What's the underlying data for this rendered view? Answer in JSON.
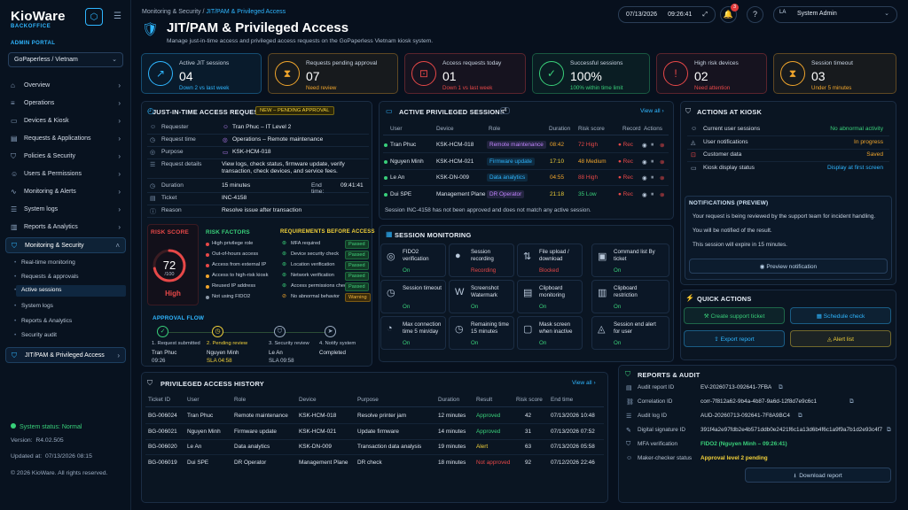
{
  "sidebar": {
    "brand": "KioWare",
    "brand_sub": "BACKOFFICE",
    "portal_label": "ADMIN PORTAL",
    "tenant": "GoPaperless / Vietnam",
    "nav": [
      {
        "label": "Overview",
        "icon": "home-icon"
      },
      {
        "label": "Operations",
        "icon": "sliders-icon"
      },
      {
        "label": "Devices & Kiosk",
        "icon": "monitor-icon"
      },
      {
        "label": "Requests & Applications",
        "icon": "document-icon"
      },
      {
        "label": "Policies & Security",
        "icon": "shield-icon"
      },
      {
        "label": "Users & Permissions",
        "icon": "users-icon"
      },
      {
        "label": "Monitoring & Alerts",
        "icon": "pulse-icon"
      },
      {
        "label": "System logs",
        "icon": "list-icon"
      },
      {
        "label": "Reports & Analytics",
        "icon": "chart-icon"
      },
      {
        "label": "Monitoring & Security",
        "icon": "shield-check-icon"
      }
    ],
    "subnav": [
      "Real-time monitoring",
      "Requests & approvals",
      "Active sessions",
      "System logs",
      "Reports & Analytics",
      "Security audit"
    ],
    "jit_item": "JIT/PAM & Privileged Access",
    "status": "System status: Normal",
    "version_label": "Version:",
    "version": "R4.02.505",
    "updated_label": "Updated at:",
    "updated": "07/13/2026 08:15",
    "copyright": "© 2026 KioWare. All rights reserved."
  },
  "header": {
    "breadcrumb_root": "Monitoring & Security",
    "breadcrumb_sep": "/",
    "breadcrumb_current": "JIT/PAM & Privileged Access",
    "title": "JIT/PAM & Privileged Access",
    "subtitle": "Manage just-in-time access and privileged access requests on the GoPaperless Vietnam kiosk system.",
    "date": "07/13/2026",
    "time": "09:26:41",
    "notif_count": "3",
    "user_initials": "LA",
    "user_name": "System Admin"
  },
  "kpis": [
    {
      "label": "Active JIT sessions",
      "value": "04",
      "sub": "Down 2 vs last week",
      "color": "#2fb6ff",
      "icon": "trend-icon"
    },
    {
      "label": "Requests pending approval",
      "value": "07",
      "sub": "Need review",
      "color": "#f0a52c",
      "icon": "hourglass-icon"
    },
    {
      "label": "Access requests today",
      "value": "01",
      "sub": "Down 1 vs last week",
      "color": "#e74848",
      "icon": "lock-icon"
    },
    {
      "label": "Successful sessions",
      "value": "100%",
      "sub": "100% within time limit",
      "color": "#39d07a",
      "icon": "check-icon"
    },
    {
      "label": "High risk devices",
      "value": "02",
      "sub": "Need attention",
      "color": "#e74848",
      "icon": "shield-alert-icon"
    },
    {
      "label": "Session timeout",
      "value": "03",
      "sub": "Under 5 minutes",
      "color": "#f0a52c",
      "icon": "hourglass-icon"
    }
  ],
  "jit": {
    "title": "JUST-IN-TIME ACCESS REQUEST",
    "badge": "NEW – PENDING APPROVAL",
    "rows": [
      {
        "k": "Requester",
        "v": "Tran Phuc – IT Level 2"
      },
      {
        "k": "Request time",
        "v": "Operations – Remote maintenance"
      },
      {
        "k": "Purpose",
        "v": "KSK-HCM-018"
      },
      {
        "k": "Request details",
        "v": "View logs, check status, firmware update, verify transaction, check devices, and service fees."
      },
      {
        "k": "Duration",
        "v": "15 minutes"
      },
      {
        "k": "Ticket",
        "v": "INC-4158"
      },
      {
        "k": "Reason",
        "v": "Resolve issue after transaction"
      }
    ],
    "end_label": "End time:",
    "end_value": "09:41:41",
    "risk_title": "RISK SCORE",
    "risk_value": "72",
    "risk_max": "/100",
    "risk_level": "High",
    "risk_pct": 0.72,
    "factors_title": "RISK FACTORS",
    "factors": [
      {
        "t": "High privilege role",
        "c": "#e74848"
      },
      {
        "t": "Out-of-hours access",
        "c": "#e74848"
      },
      {
        "t": "Access from external IP",
        "c": "#e74848"
      },
      {
        "t": "Access to high-risk kiosk",
        "c": "#f0a52c"
      },
      {
        "t": "Reused IP address",
        "c": "#f0a52c"
      },
      {
        "t": "Not using FIDO2",
        "c": "#8a96a6"
      }
    ],
    "req_title": "REQUIREMENTS BEFORE ACCESS",
    "reqs": [
      {
        "t": "MFA required",
        "s": "Passed",
        "ok": true
      },
      {
        "t": "Device security check",
        "s": "Passed",
        "ok": true
      },
      {
        "t": "Location verification",
        "s": "Passed",
        "ok": true
      },
      {
        "t": "Network verification",
        "s": "Passed",
        "ok": true
      },
      {
        "t": "Access permissions check",
        "s": "Passed",
        "ok": true
      },
      {
        "t": "No abnormal behavior",
        "s": "Warning",
        "ok": false
      }
    ],
    "flow_title": "APPROVAL FLOW",
    "flow": [
      {
        "step": "1. Request submitted",
        "who": "Tran Phuc",
        "when": "09:26"
      },
      {
        "step": "2. Pending review",
        "who": "Nguyen Minh",
        "when": "SLA 04:58"
      },
      {
        "step": "3. Security review",
        "who": "Le An",
        "when": "SLA 09:58"
      },
      {
        "step": "4. Notify system",
        "who": "Completed",
        "when": ""
      }
    ]
  },
  "sessions": {
    "title": "ACTIVE PRIVILEGED SESSIONS",
    "count": "4",
    "view_all": "View all",
    "cols": [
      "User",
      "Device",
      "Role",
      "Duration",
      "Risk score",
      "Record",
      "Actions"
    ],
    "rows": [
      {
        "user": "Tran Phuc",
        "device": "KSK-HCM-018",
        "role": "Remote maintenance",
        "roleColor": "#c184ff",
        "dur": "08:42",
        "durColor": "#f0a52c",
        "risk": "72 High",
        "riskColor": "#e74848",
        "rec": "Rec"
      },
      {
        "user": "Nguyen Minh",
        "device": "KSK-HCM-021",
        "role": "Firmware update",
        "roleColor": "#2fb6ff",
        "dur": "17:10",
        "durColor": "#f2d13a",
        "risk": "48 Medium",
        "riskColor": "#f0a52c",
        "rec": "Rec"
      },
      {
        "user": "Le An",
        "device": "KSK-DN-009",
        "role": "Data analytics",
        "roleColor": "#2fb6ff",
        "dur": "04:55",
        "durColor": "#f0a52c",
        "risk": "88 High",
        "riskColor": "#e74848",
        "rec": "Rec"
      },
      {
        "user": "Dui SPE",
        "device": "Management Plane",
        "role": "DR Operator",
        "roleColor": "#c184ff",
        "dur": "21:18",
        "durColor": "#f2d13a",
        "risk": "35 Low",
        "riskColor": "#39d07a",
        "rec": "Rec"
      }
    ],
    "note": "Session INC-4158 has not been approved and does not match any active session."
  },
  "monitoring": {
    "title": "SESSION MONITORING",
    "tiles": [
      {
        "l": "FIDO2 verification",
        "s": "On",
        "sc": "#39d07a",
        "i": "fingerprint-icon"
      },
      {
        "l": "Session recording",
        "s": "Recording",
        "sc": "#e74848",
        "i": "record-icon"
      },
      {
        "l": "File upload / download",
        "s": "Blocked",
        "sc": "#e74848",
        "i": "upload-icon"
      },
      {
        "l": "Command list By ticket",
        "s": "On",
        "sc": "#39d07a",
        "i": "terminal-icon"
      },
      {
        "l": "Session timeout",
        "s": "On",
        "sc": "#39d07a",
        "i": "timer-icon"
      },
      {
        "l": "Screenshot Watermark",
        "s": "On",
        "sc": "#39d07a",
        "i": "watermark-icon"
      },
      {
        "l": "Clipboard monitoring",
        "s": "On",
        "sc": "#39d07a",
        "i": "clipboard-icon"
      },
      {
        "l": "Clipboard restriction",
        "s": "On",
        "sc": "#39d07a",
        "i": "clipboard-lock-icon"
      },
      {
        "l": "Max connection time 5 min/day",
        "s": "On",
        "sc": "#39d07a",
        "i": "speed-icon"
      },
      {
        "l": "Remaining time 15 minutes",
        "s": "On",
        "sc": "#39d07a",
        "i": "clock-icon"
      },
      {
        "l": "Mask screen when inactive",
        "s": "On",
        "sc": "#39d07a",
        "i": "mask-icon"
      },
      {
        "l": "Session end alert for user",
        "s": "On",
        "sc": "#39d07a",
        "i": "bell-icon"
      }
    ]
  },
  "kiosk": {
    "title": "ACTIONS AT KIOSK",
    "rows": [
      {
        "k": "Current user sessions",
        "v": "No abnormal activity",
        "c": "#39d07a"
      },
      {
        "k": "User notifications",
        "v": "In progress",
        "c": "#f0a52c"
      },
      {
        "k": "Customer data",
        "v": "Saved",
        "c": "#f0a52c"
      },
      {
        "k": "Kiosk display status",
        "v": "Display at first screen",
        "c": "#2fb6ff"
      }
    ],
    "notif_title": "NOTIFICATIONS (PREVIEW)",
    "notif_lines": [
      "Your request is being reviewed by the support team for incident handling.",
      "You will be notified of the result.",
      "This session will expire in 15 minutes."
    ],
    "preview_btn": "Preview notification"
  },
  "quick": {
    "title": "QUICK ACTIONS",
    "buttons": [
      {
        "t": "Create support ticket",
        "c": "#39d07a"
      },
      {
        "t": "Schedule check",
        "c": "#2fb6ff"
      },
      {
        "t": "Export report",
        "c": "#2fb6ff"
      },
      {
        "t": "Alert list",
        "c": "#f2d13a"
      }
    ]
  },
  "history": {
    "title": "PRIVILEGED ACCESS HISTORY",
    "view_all": "View all",
    "cols": [
      "Ticket ID",
      "User",
      "Role",
      "Device",
      "Purpose",
      "Duration",
      "Result",
      "Risk score",
      "End time"
    ],
    "rows": [
      {
        "id": "BG-006024",
        "user": "Tran Phuc",
        "role": "Remote maintenance",
        "device": "KSK-HCM-018",
        "purpose": "Resolve printer jam",
        "dur": "12 minutes",
        "result": "Approved",
        "rc": "#39d07a",
        "risk": "42",
        "end": "07/13/2026 10:48"
      },
      {
        "id": "BG-006021",
        "user": "Nguyen Minh",
        "role": "Firmware update",
        "device": "KSK-HCM-021",
        "purpose": "Update firmware",
        "dur": "14 minutes",
        "result": "Approved",
        "rc": "#39d07a",
        "risk": "31",
        "end": "07/13/2026 07:52"
      },
      {
        "id": "BG-006020",
        "user": "Le An",
        "role": "Data analytics",
        "device": "KSK-DN-009",
        "purpose": "Transaction data analysis",
        "dur": "19 minutes",
        "result": "Alert",
        "rc": "#f2d13a",
        "risk": "63",
        "end": "07/13/2026 05:58"
      },
      {
        "id": "BG-006019",
        "user": "Dui SPE",
        "role": "DR Operator",
        "device": "Management Plane",
        "purpose": "DR check",
        "dur": "18 minutes",
        "result": "Not approved",
        "rc": "#e74848",
        "risk": "92",
        "end": "07/12/2026 22:46"
      }
    ]
  },
  "audit": {
    "title": "REPORTS & AUDIT",
    "rows": [
      {
        "k": "Audit report ID",
        "v": "EV-20260713-092641-7FBA",
        "c": "#d6dfea"
      },
      {
        "k": "Correlation ID",
        "v": "corr-7f812a62-9b4a-4b87-9a6d-12f8d7e9c6c1",
        "c": "#d6dfea"
      },
      {
        "k": "Audit log ID",
        "v": "AUD-20260713-092641-7F8A9BC4",
        "c": "#d6dfea"
      },
      {
        "k": "Digital signature ID",
        "v": "391f4a2e97fdb2e4b571ddb0e2421f6c1a13d6b4f6c1a9f9a7b1d2e93c4f7b2",
        "c": "#d6dfea"
      },
      {
        "k": "MFA verification",
        "v": "FIDO2 (Nguyen Minh – 09:26:41)",
        "c": "#39d07a"
      },
      {
        "k": "Maker-checker status",
        "v": "Approval level 2 pending",
        "c": "#f2d13a"
      }
    ],
    "download": "Download report"
  }
}
